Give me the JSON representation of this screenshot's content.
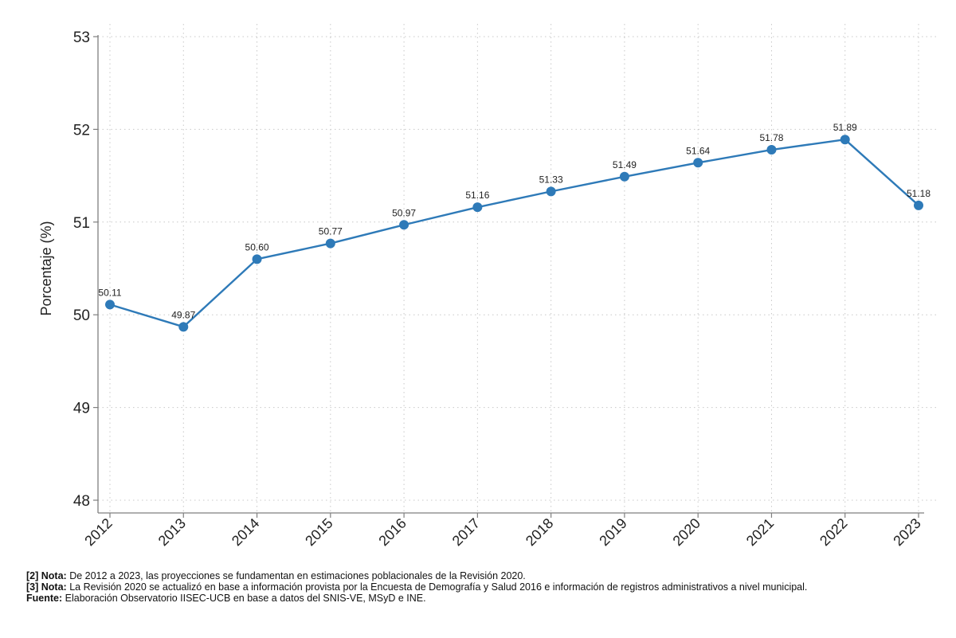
{
  "chart_data": {
    "type": "line",
    "title": "",
    "xlabel": "",
    "ylabel": "Porcentaje (%)",
    "x": [
      "2012",
      "2013",
      "2014",
      "2015",
      "2016",
      "2017",
      "2018",
      "2019",
      "2020",
      "2021",
      "2022",
      "2023"
    ],
    "series": [
      {
        "values": [
          50.11,
          49.87,
          50.6,
          50.77,
          50.97,
          51.16,
          51.33,
          51.49,
          51.64,
          51.78,
          51.89,
          51.18
        ],
        "labels": [
          "50.11",
          "49.87",
          "50.60",
          "50.77",
          "50.97",
          "51.16",
          "51.33",
          "51.49",
          "51.64",
          "51.78",
          "51.89",
          "51.18"
        ],
        "color": "#2e7ab8"
      }
    ],
    "ylim": [
      48,
      53
    ],
    "yticks": [
      "48",
      "49",
      "50",
      "51",
      "52",
      "53"
    ],
    "grid": "dotted",
    "legend": "none"
  },
  "notes": [
    {
      "label": "[2] Nota:",
      "text": "De 2012 a 2023, las proyecciones se fundamentan en estimaciones poblacionales de la Revisión 2020."
    },
    {
      "label": "[3] Nota:",
      "text": "La Revisión 2020 se actualizó en base a información provista por la Encuesta de Demografía y Salud 2016 e información de registros administrativos a nivel municipal."
    },
    {
      "label": "Fuente:",
      "text": "Elaboración Observatorio IISEC-UCB en base a datos del SNIS-VE, MSyD e INE."
    }
  ]
}
